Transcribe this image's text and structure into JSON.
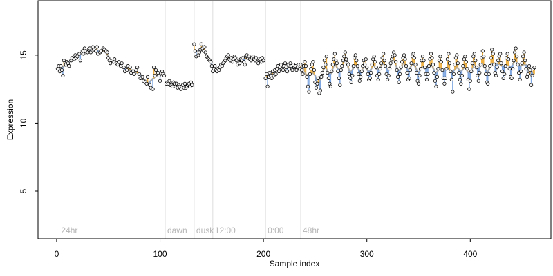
{
  "chart_data": {
    "type": "scatter",
    "xlabel": "Sample index",
    "ylabel": "Expression",
    "xlim": [
      -18,
      478
    ],
    "ylim": [
      1.5,
      19
    ],
    "xticks": [
      0,
      100,
      200,
      300,
      400
    ],
    "yticks": [
      5,
      10,
      15
    ],
    "grid": false,
    "markers": [
      {
        "x": 105,
        "label": "dawn"
      },
      {
        "x": 133,
        "label": "dusk"
      },
      {
        "x": 151,
        "label": "12:00"
      },
      {
        "x": 202,
        "label": "0:00"
      },
      {
        "x": 236,
        "label": "48hr"
      }
    ],
    "corner_label": {
      "x": 3,
      "label": "24hr"
    },
    "colors": {
      "fit_line": "#aaaaaa",
      "residual_above": "#f0b040",
      "residual_below": "#7ea6e0",
      "point_fill": "#f3f3f3",
      "point_edge": "#000000",
      "marker_line": "#dddddd"
    },
    "points": [
      [
        1,
        14.0
      ],
      [
        2,
        14.2
      ],
      [
        3,
        13.8
      ],
      [
        4,
        14.2
      ],
      [
        5,
        13.9
      ],
      [
        6,
        13.5
      ],
      [
        7,
        14.6
      ],
      [
        9,
        14.3
      ],
      [
        10,
        14.5
      ],
      [
        11,
        14.4
      ],
      [
        12,
        14.2
      ],
      [
        14,
        14.6
      ],
      [
        15,
        14.8
      ],
      [
        17,
        14.7
      ],
      [
        18,
        15.0
      ],
      [
        19,
        14.8
      ],
      [
        20,
        14.9
      ],
      [
        22,
        15.1
      ],
      [
        23,
        14.6
      ],
      [
        25,
        15.3
      ],
      [
        26,
        15.1
      ],
      [
        27,
        15.5
      ],
      [
        28,
        15.3
      ],
      [
        30,
        15.2
      ],
      [
        31,
        15.4
      ],
      [
        32,
        15.5
      ],
      [
        33,
        15.2
      ],
      [
        35,
        15.6
      ],
      [
        36,
        15.4
      ],
      [
        38,
        15.3
      ],
      [
        39,
        15.6
      ],
      [
        40,
        15.1
      ],
      [
        42,
        15.2
      ],
      [
        43,
        15.3
      ],
      [
        45,
        15.5
      ],
      [
        46,
        15.4
      ],
      [
        48,
        15.3
      ],
      [
        49,
        15.2
      ],
      [
        50,
        14.8
      ],
      [
        51,
        14.6
      ],
      [
        52,
        14.4
      ],
      [
        54,
        14.6
      ],
      [
        55,
        14.5
      ],
      [
        56,
        14.7
      ],
      [
        58,
        14.4
      ],
      [
        59,
        14.3
      ],
      [
        60,
        14.5
      ],
      [
        62,
        14.2
      ],
      [
        63,
        14.4
      ],
      [
        65,
        14.1
      ],
      [
        66,
        13.8
      ],
      [
        68,
        13.9
      ],
      [
        69,
        14.2
      ],
      [
        71,
        14.1
      ],
      [
        72,
        13.7
      ],
      [
        74,
        13.8
      ],
      [
        75,
        13.6
      ],
      [
        77,
        13.9
      ],
      [
        78,
        14.1
      ],
      [
        80,
        13.6
      ],
      [
        81,
        13.3
      ],
      [
        83,
        13.4
      ],
      [
        84,
        13.1
      ],
      [
        86,
        13.0
      ],
      [
        87,
        12.9
      ],
      [
        88,
        13.4
      ],
      [
        90,
        12.8
      ],
      [
        91,
        12.6
      ],
      [
        93,
        12.5
      ],
      [
        94,
        14.1
      ],
      [
        95,
        13.5
      ],
      [
        96,
        13.9
      ],
      [
        98,
        13.7
      ],
      [
        99,
        13.5
      ],
      [
        100,
        13.1
      ],
      [
        102,
        13.8
      ],
      [
        103,
        13.6
      ],
      [
        104,
        13.5
      ],
      [
        106,
        12.9
      ],
      [
        107,
        13.0
      ],
      [
        108,
        12.9
      ],
      [
        109,
        13.1
      ],
      [
        110,
        12.8
      ],
      [
        111,
        12.8
      ],
      [
        112,
        12.7
      ],
      [
        113,
        13.0
      ],
      [
        114,
        12.9
      ],
      [
        115,
        12.7
      ],
      [
        116,
        12.9
      ],
      [
        117,
        12.6
      ],
      [
        118,
        12.8
      ],
      [
        119,
        12.7
      ],
      [
        120,
        12.5
      ],
      [
        121,
        12.7
      ],
      [
        122,
        12.8
      ],
      [
        123,
        12.6
      ],
      [
        124,
        12.9
      ],
      [
        125,
        12.6
      ],
      [
        126,
        12.7
      ],
      [
        127,
        12.8
      ],
      [
        128,
        12.9
      ],
      [
        129,
        12.7
      ],
      [
        130,
        13.0
      ],
      [
        131,
        12.8
      ],
      [
        133,
        15.8
      ],
      [
        134,
        15.3
      ],
      [
        135,
        14.9
      ],
      [
        137,
        15.0
      ],
      [
        138,
        15.2
      ],
      [
        139,
        15.4
      ],
      [
        140,
        15.8
      ],
      [
        141,
        15.5
      ],
      [
        142,
        15.3
      ],
      [
        143,
        15.6
      ],
      [
        144,
        15.2
      ],
      [
        145,
        14.9
      ],
      [
        146,
        14.8
      ],
      [
        147,
        14.7
      ],
      [
        148,
        14.6
      ],
      [
        149,
        14.5
      ],
      [
        150,
        14.2
      ],
      [
        151,
        13.8
      ],
      [
        152,
        14.0
      ],
      [
        153,
        14.2
      ],
      [
        154,
        13.9
      ],
      [
        155,
        13.8
      ],
      [
        156,
        14.0
      ],
      [
        157,
        13.9
      ],
      [
        158,
        14.1
      ],
      [
        159,
        14.3
      ],
      [
        160,
        14.2
      ],
      [
        161,
        14.4
      ],
      [
        162,
        14.5
      ],
      [
        163,
        14.6
      ],
      [
        164,
        14.8
      ],
      [
        165,
        14.9
      ],
      [
        166,
        15.0
      ],
      [
        167,
        14.7
      ],
      [
        168,
        14.6
      ],
      [
        169,
        14.8
      ],
      [
        170,
        14.5
      ],
      [
        171,
        14.7
      ],
      [
        172,
        14.9
      ],
      [
        173,
        14.8
      ],
      [
        174,
        14.6
      ],
      [
        175,
        14.3
      ],
      [
        176,
        14.5
      ],
      [
        177,
        14.4
      ],
      [
        178,
        14.7
      ],
      [
        179,
        14.6
      ],
      [
        180,
        14.8
      ],
      [
        181,
        14.5
      ],
      [
        182,
        14.3
      ],
      [
        183,
        14.9
      ],
      [
        184,
        15.0
      ],
      [
        185,
        14.8
      ],
      [
        186,
        14.9
      ],
      [
        187,
        14.7
      ],
      [
        188,
        14.6
      ],
      [
        189,
        14.8
      ],
      [
        190,
        14.9
      ],
      [
        191,
        14.7
      ],
      [
        192,
        14.6
      ],
      [
        193,
        14.8
      ],
      [
        195,
        14.4
      ],
      [
        196,
        14.6
      ],
      [
        197,
        14.7
      ],
      [
        198,
        14.5
      ],
      [
        199,
        14.8
      ],
      [
        200,
        14.6
      ],
      [
        202,
        13.3
      ],
      [
        203,
        13.6
      ],
      [
        204,
        12.7
      ],
      [
        205,
        13.4
      ],
      [
        206,
        13.7
      ],
      [
        207,
        13.5
      ],
      [
        208,
        13.3
      ],
      [
        209,
        13.8
      ],
      [
        210,
        13.5
      ],
      [
        211,
        13.9
      ],
      [
        212,
        13.6
      ],
      [
        213,
        14.0
      ],
      [
        214,
        14.2
      ],
      [
        215,
        13.8
      ],
      [
        216,
        14.1
      ],
      [
        217,
        14.3
      ],
      [
        218,
        14.0
      ],
      [
        219,
        13.9
      ],
      [
        220,
        14.2
      ],
      [
        221,
        14.4
      ],
      [
        222,
        14.1
      ],
      [
        223,
        13.8
      ],
      [
        224,
        14.3
      ],
      [
        225,
        14.0
      ],
      [
        226,
        14.4
      ],
      [
        227,
        14.2
      ],
      [
        228,
        13.9
      ],
      [
        229,
        14.3
      ],
      [
        230,
        14.1
      ],
      [
        231,
        14.2
      ],
      [
        232,
        13.9
      ],
      [
        233,
        14.1
      ],
      [
        234,
        14.3
      ],
      [
        235,
        14.0
      ],
      [
        236,
        14.3
      ],
      [
        237,
        13.9
      ],
      [
        238,
        13.6
      ],
      [
        239,
        14.2
      ],
      [
        240,
        14.5
      ],
      [
        241,
        14.2
      ],
      [
        242,
        13.4
      ],
      [
        243,
        12.7
      ],
      [
        244,
        12.3
      ],
      [
        245,
        13.6
      ],
      [
        246,
        14.0
      ],
      [
        247,
        14.3
      ],
      [
        248,
        14.5
      ],
      [
        249,
        13.9
      ],
      [
        250,
        13.0
      ],
      [
        251,
        12.6
      ],
      [
        252,
        12.9
      ],
      [
        253,
        13.3
      ],
      [
        254,
        12.2
      ],
      [
        255,
        12.4
      ],
      [
        256,
        13.4
      ],
      [
        257,
        13.7
      ],
      [
        258,
        14.1
      ],
      [
        259,
        14.6
      ],
      [
        260,
        14.3
      ],
      [
        261,
        14.9
      ],
      [
        262,
        13.7
      ],
      [
        263,
        13.3
      ],
      [
        264,
        12.9
      ],
      [
        265,
        12.7
      ],
      [
        266,
        13.8
      ],
      [
        267,
        14.3
      ],
      [
        268,
        14.7
      ],
      [
        269,
        15.1
      ],
      [
        270,
        14.6
      ],
      [
        271,
        14.4
      ],
      [
        272,
        13.8
      ],
      [
        273,
        13.3
      ],
      [
        274,
        12.8
      ],
      [
        275,
        13.9
      ],
      [
        276,
        14.2
      ],
      [
        277,
        14.6
      ],
      [
        278,
        14.9
      ],
      [
        279,
        15.2
      ],
      [
        280,
        14.7
      ],
      [
        281,
        14.4
      ],
      [
        282,
        14.3
      ],
      [
        283,
        13.6
      ],
      [
        284,
        13.3
      ],
      [
        285,
        13.0
      ],
      [
        286,
        13.5
      ],
      [
        287,
        14.2
      ],
      [
        288,
        14.8
      ],
      [
        289,
        15.0
      ],
      [
        290,
        14.6
      ],
      [
        291,
        14.2
      ],
      [
        292,
        13.6
      ],
      [
        293,
        13.1
      ],
      [
        294,
        13.4
      ],
      [
        295,
        13.8
      ],
      [
        296,
        14.2
      ],
      [
        297,
        14.6
      ],
      [
        298,
        14.3
      ],
      [
        299,
        14.7
      ],
      [
        300,
        14.1
      ],
      [
        301,
        13.6
      ],
      [
        302,
        13.2
      ],
      [
        303,
        13.3
      ],
      [
        304,
        13.7
      ],
      [
        305,
        14.3
      ],
      [
        306,
        14.7
      ],
      [
        307,
        14.9
      ],
      [
        308,
        14.5
      ],
      [
        309,
        14.1
      ],
      [
        310,
        13.5
      ],
      [
        311,
        13.2
      ],
      [
        312,
        13.6
      ],
      [
        313,
        14.0
      ],
      [
        314,
        14.4
      ],
      [
        315,
        14.8
      ],
      [
        316,
        15.1
      ],
      [
        317,
        14.6
      ],
      [
        318,
        14.2
      ],
      [
        319,
        13.6
      ],
      [
        320,
        13.2
      ],
      [
        321,
        13.5
      ],
      [
        322,
        14.0
      ],
      [
        323,
        14.4
      ],
      [
        324,
        14.7
      ],
      [
        325,
        14.9
      ],
      [
        326,
        15.2
      ],
      [
        327,
        15.0
      ],
      [
        328,
        14.5
      ],
      [
        329,
        13.9
      ],
      [
        330,
        13.4
      ],
      [
        331,
        13.0
      ],
      [
        332,
        13.6
      ],
      [
        333,
        14.1
      ],
      [
        334,
        14.5
      ],
      [
        335,
        14.8
      ],
      [
        336,
        15.0
      ],
      [
        337,
        14.7
      ],
      [
        338,
        14.2
      ],
      [
        339,
        13.7
      ],
      [
        340,
        13.2
      ],
      [
        341,
        13.3
      ],
      [
        342,
        13.9
      ],
      [
        343,
        14.4
      ],
      [
        344,
        14.9
      ],
      [
        345,
        15.1
      ],
      [
        346,
        14.8
      ],
      [
        347,
        14.3
      ],
      [
        348,
        13.7
      ],
      [
        349,
        13.1
      ],
      [
        350,
        12.9
      ],
      [
        351,
        13.5
      ],
      [
        352,
        14.0
      ],
      [
        353,
        14.6
      ],
      [
        354,
        14.9
      ],
      [
        355,
        14.6
      ],
      [
        356,
        14.1
      ],
      [
        357,
        13.6
      ],
      [
        358,
        13.2
      ],
      [
        359,
        13.6
      ],
      [
        360,
        14.2
      ],
      [
        361,
        14.7
      ],
      [
        362,
        15.1
      ],
      [
        363,
        14.8
      ],
      [
        364,
        14.3
      ],
      [
        365,
        13.7
      ],
      [
        366,
        13.1
      ],
      [
        367,
        12.7
      ],
      [
        368,
        13.4
      ],
      [
        369,
        14.0
      ],
      [
        370,
        14.6
      ],
      [
        371,
        14.9
      ],
      [
        372,
        14.5
      ],
      [
        373,
        13.9
      ],
      [
        374,
        13.3
      ],
      [
        375,
        12.9
      ],
      [
        376,
        13.3
      ],
      [
        377,
        14.0
      ],
      [
        378,
        14.7
      ],
      [
        379,
        15.1
      ],
      [
        380,
        14.4
      ],
      [
        381,
        13.8
      ],
      [
        382,
        13.2
      ],
      [
        383,
        12.3
      ],
      [
        384,
        13.6
      ],
      [
        385,
        14.3
      ],
      [
        386,
        14.8
      ],
      [
        387,
        15.0
      ],
      [
        388,
        14.4
      ],
      [
        389,
        13.7
      ],
      [
        390,
        13.2
      ],
      [
        391,
        12.9
      ],
      [
        392,
        13.5
      ],
      [
        393,
        14.2
      ],
      [
        394,
        14.7
      ],
      [
        395,
        14.9
      ],
      [
        396,
        14.5
      ],
      [
        397,
        14.0
      ],
      [
        398,
        13.2
      ],
      [
        399,
        12.5
      ],
      [
        400,
        13.1
      ],
      [
        401,
        13.8
      ],
      [
        402,
        14.4
      ],
      [
        403,
        14.9
      ],
      [
        404,
        15.1
      ],
      [
        405,
        14.6
      ],
      [
        406,
        14.1
      ],
      [
        407,
        13.5
      ],
      [
        408,
        13.1
      ],
      [
        409,
        13.7
      ],
      [
        410,
        14.3
      ],
      [
        411,
        14.8
      ],
      [
        412,
        15.3
      ],
      [
        413,
        14.9
      ],
      [
        414,
        14.2
      ],
      [
        415,
        13.6
      ],
      [
        416,
        13.0
      ],
      [
        417,
        12.9
      ],
      [
        418,
        13.6
      ],
      [
        419,
        14.2
      ],
      [
        420,
        14.8
      ],
      [
        421,
        15.4
      ],
      [
        422,
        15.1
      ],
      [
        423,
        14.3
      ],
      [
        424,
        13.7
      ],
      [
        425,
        13.5
      ],
      [
        426,
        14.1
      ],
      [
        427,
        14.6
      ],
      [
        428,
        14.9
      ],
      [
        429,
        15.1
      ],
      [
        430,
        14.4
      ],
      [
        431,
        13.8
      ],
      [
        432,
        13.3
      ],
      [
        433,
        13.6
      ],
      [
        434,
        14.2
      ],
      [
        435,
        14.8
      ],
      [
        436,
        15.1
      ],
      [
        437,
        14.7
      ],
      [
        438,
        14.0
      ],
      [
        439,
        13.4
      ],
      [
        440,
        13.3
      ],
      [
        441,
        14.0
      ],
      [
        442,
        14.6
      ],
      [
        443,
        15.2
      ],
      [
        444,
        15.5
      ],
      [
        445,
        14.9
      ],
      [
        446,
        14.3
      ],
      [
        447,
        13.7
      ],
      [
        448,
        13.2
      ],
      [
        449,
        13.8
      ],
      [
        450,
        14.4
      ],
      [
        451,
        14.9
      ],
      [
        452,
        15.2
      ],
      [
        453,
        14.6
      ],
      [
        454,
        14.0
      ],
      [
        455,
        13.4
      ],
      [
        456,
        13.6
      ],
      [
        457,
        14.2
      ],
      [
        458,
        13.9
      ],
      [
        459,
        12.8
      ],
      [
        460,
        13.5
      ],
      [
        461,
        14.0
      ],
      [
        462,
        14.1
      ]
    ]
  }
}
